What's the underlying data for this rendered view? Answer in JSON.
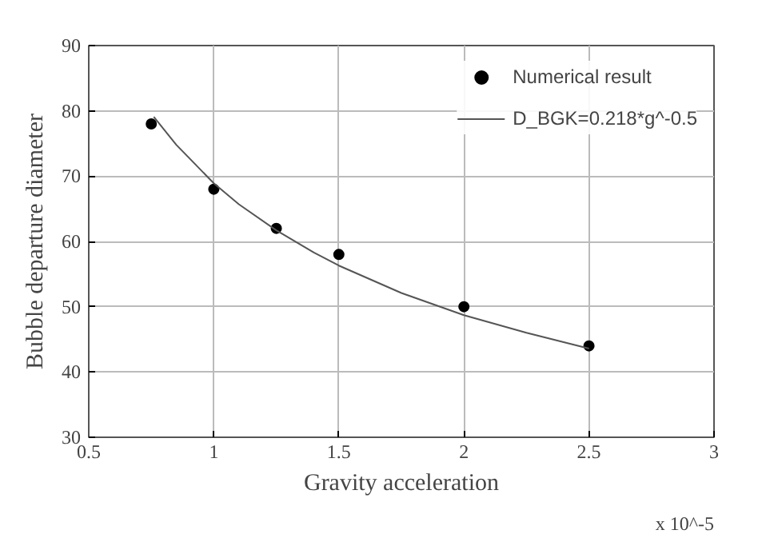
{
  "chart_data": {
    "type": "scatter",
    "xlabel": "Gravity acceleration",
    "ylabel": "Bubble departure diameter",
    "annotations": [
      "x 10^-5"
    ],
    "series": [
      {
        "name": "Numerical result",
        "color": "#000000",
        "marker": "circle",
        "x": [
          0.75,
          1,
          1.25,
          1.5,
          2,
          2.5
        ],
        "values": [
          78,
          68,
          62,
          58,
          50,
          44
        ]
      },
      {
        "name": "D_BGK=0.218*g^-0.5",
        "type": "line",
        "color": "#555555",
        "marker": "none",
        "line_style": "solid",
        "x": [
          0.76,
          0.85,
          1,
          1.1,
          1.25,
          1.4,
          1.5,
          1.75,
          2,
          2.25,
          2.5
        ],
        "values": [
          79.1,
          74.8,
          68.9,
          65.7,
          61.7,
          58.3,
          56.3,
          52.1,
          48.7,
          46.0,
          43.6
        ]
      }
    ],
    "xlim": [
      0.5,
      3
    ],
    "xticks": [
      0.5,
      1,
      1.5,
      2,
      2.5,
      3
    ],
    "ylim": [
      30,
      90
    ],
    "yticks": [
      30,
      40,
      50,
      60,
      70,
      80,
      90
    ],
    "grid": true,
    "legend": "top right"
  }
}
